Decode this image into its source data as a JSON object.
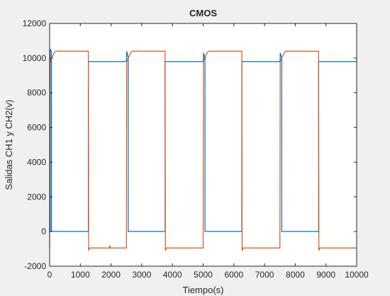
{
  "chart_data": {
    "type": "line",
    "title": "CMOS",
    "xlabel": "Tiempo(s)",
    "ylabel": "Salidas CH1  y CH2(v)",
    "xlim": [
      0,
      10000
    ],
    "ylim": [
      -2000,
      12000
    ],
    "xticks": [
      0,
      1000,
      2000,
      3000,
      4000,
      5000,
      6000,
      7000,
      8000,
      9000,
      10000
    ],
    "yticks": [
      -2000,
      0,
      2000,
      4000,
      6000,
      8000,
      10000,
      12000
    ],
    "grid": false,
    "legend": "none",
    "series": [
      {
        "color": "#0072bd",
        "x": [
          0,
          20,
          20,
          60,
          60,
          1260,
          1260,
          2500,
          2510,
          2510,
          2560,
          2560,
          3760,
          3760,
          5000,
          5010,
          5010,
          5060,
          5060,
          6260,
          6260,
          7500,
          7510,
          7510,
          7560,
          7560,
          8760,
          8760,
          10000
        ],
        "y": [
          0,
          0,
          10500,
          10400,
          0,
          0,
          9800,
          9800,
          10300,
          10400,
          10000,
          0,
          0,
          9800,
          9800,
          10000,
          10300,
          10000,
          0,
          0,
          9800,
          9800,
          10000,
          10300,
          10000,
          0,
          0,
          9800,
          9800
        ]
      },
      {
        "color": "#d95319",
        "x": [
          0,
          10,
          40,
          80,
          100,
          120,
          160,
          200,
          1260,
          1270,
          1300,
          1400,
          1950,
          1960,
          1970,
          2500,
          2510,
          2530,
          2560,
          2600,
          2650,
          2700,
          3760,
          3770,
          3800,
          3900,
          5000,
          5010,
          5040,
          5080,
          5100,
          5150,
          5200,
          6260,
          6270,
          6300,
          6400,
          7500,
          7510,
          7530,
          7560,
          7600,
          7650,
          7700,
          8760,
          8770,
          8800,
          8900,
          10000
        ],
        "y": [
          -900,
          9500,
          9900,
          10000,
          10100,
          10200,
          10350,
          10400,
          10400,
          -1100,
          -950,
          -950,
          -950,
          -800,
          -950,
          -950,
          9800,
          9900,
          10000,
          10150,
          10350,
          10400,
          10400,
          -1100,
          -950,
          -950,
          -950,
          9800,
          10000,
          10050,
          10250,
          10350,
          10400,
          10400,
          -1100,
          -950,
          -950,
          -950,
          9800,
          9900,
          10000,
          10150,
          10350,
          10400,
          10400,
          -1100,
          -950,
          -950,
          -950
        ]
      }
    ]
  }
}
